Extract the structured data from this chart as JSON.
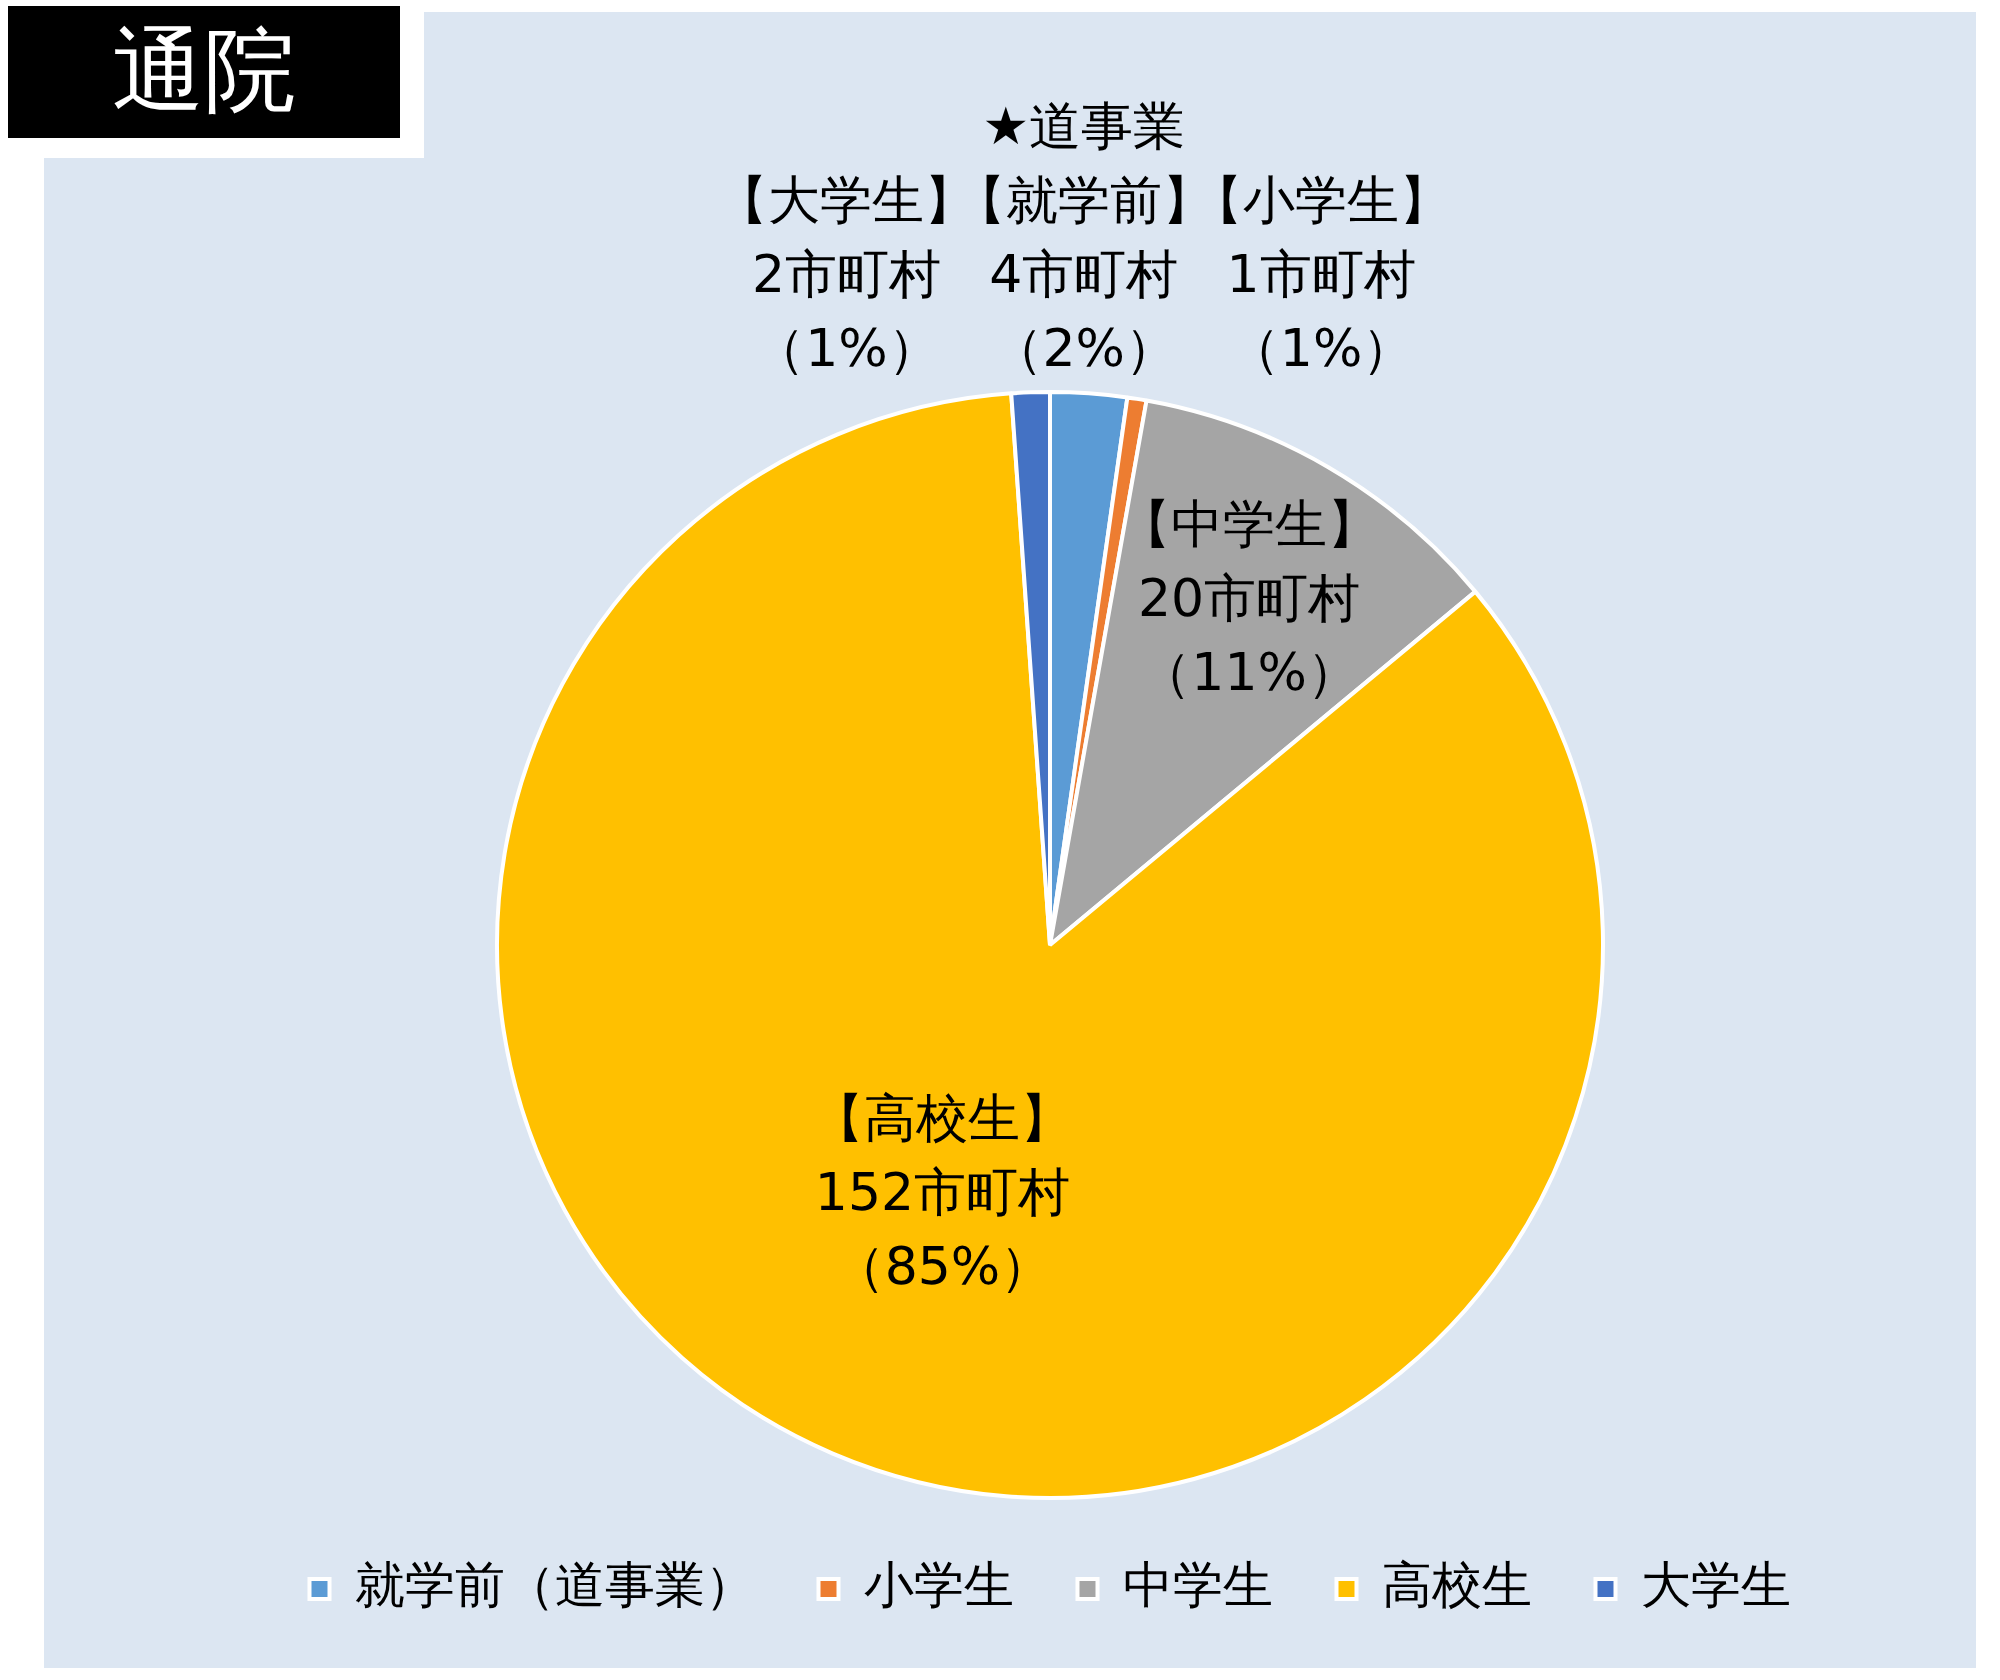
{
  "chart_data": {
    "type": "pie",
    "title": "通院",
    "categories": [
      "就学前（道事業）",
      "小学生",
      "中学生",
      "高校生",
      "大学生"
    ],
    "values": [
      4,
      1,
      20,
      152,
      2
    ],
    "colors": [
      "#5b9bd5",
      "#ed7d31",
      "#a5a5a5",
      "#ffc000",
      "#4472c4"
    ],
    "value_labels": [
      "★道事業【就学前】4市町村（2%）",
      "【小学生】1市町村（1%）",
      "【中学生】20市町村（11%）",
      "【高校生】152市町村（85%）",
      "【大学生】2市町村（1%）"
    ],
    "legend": "bottom"
  }
}
